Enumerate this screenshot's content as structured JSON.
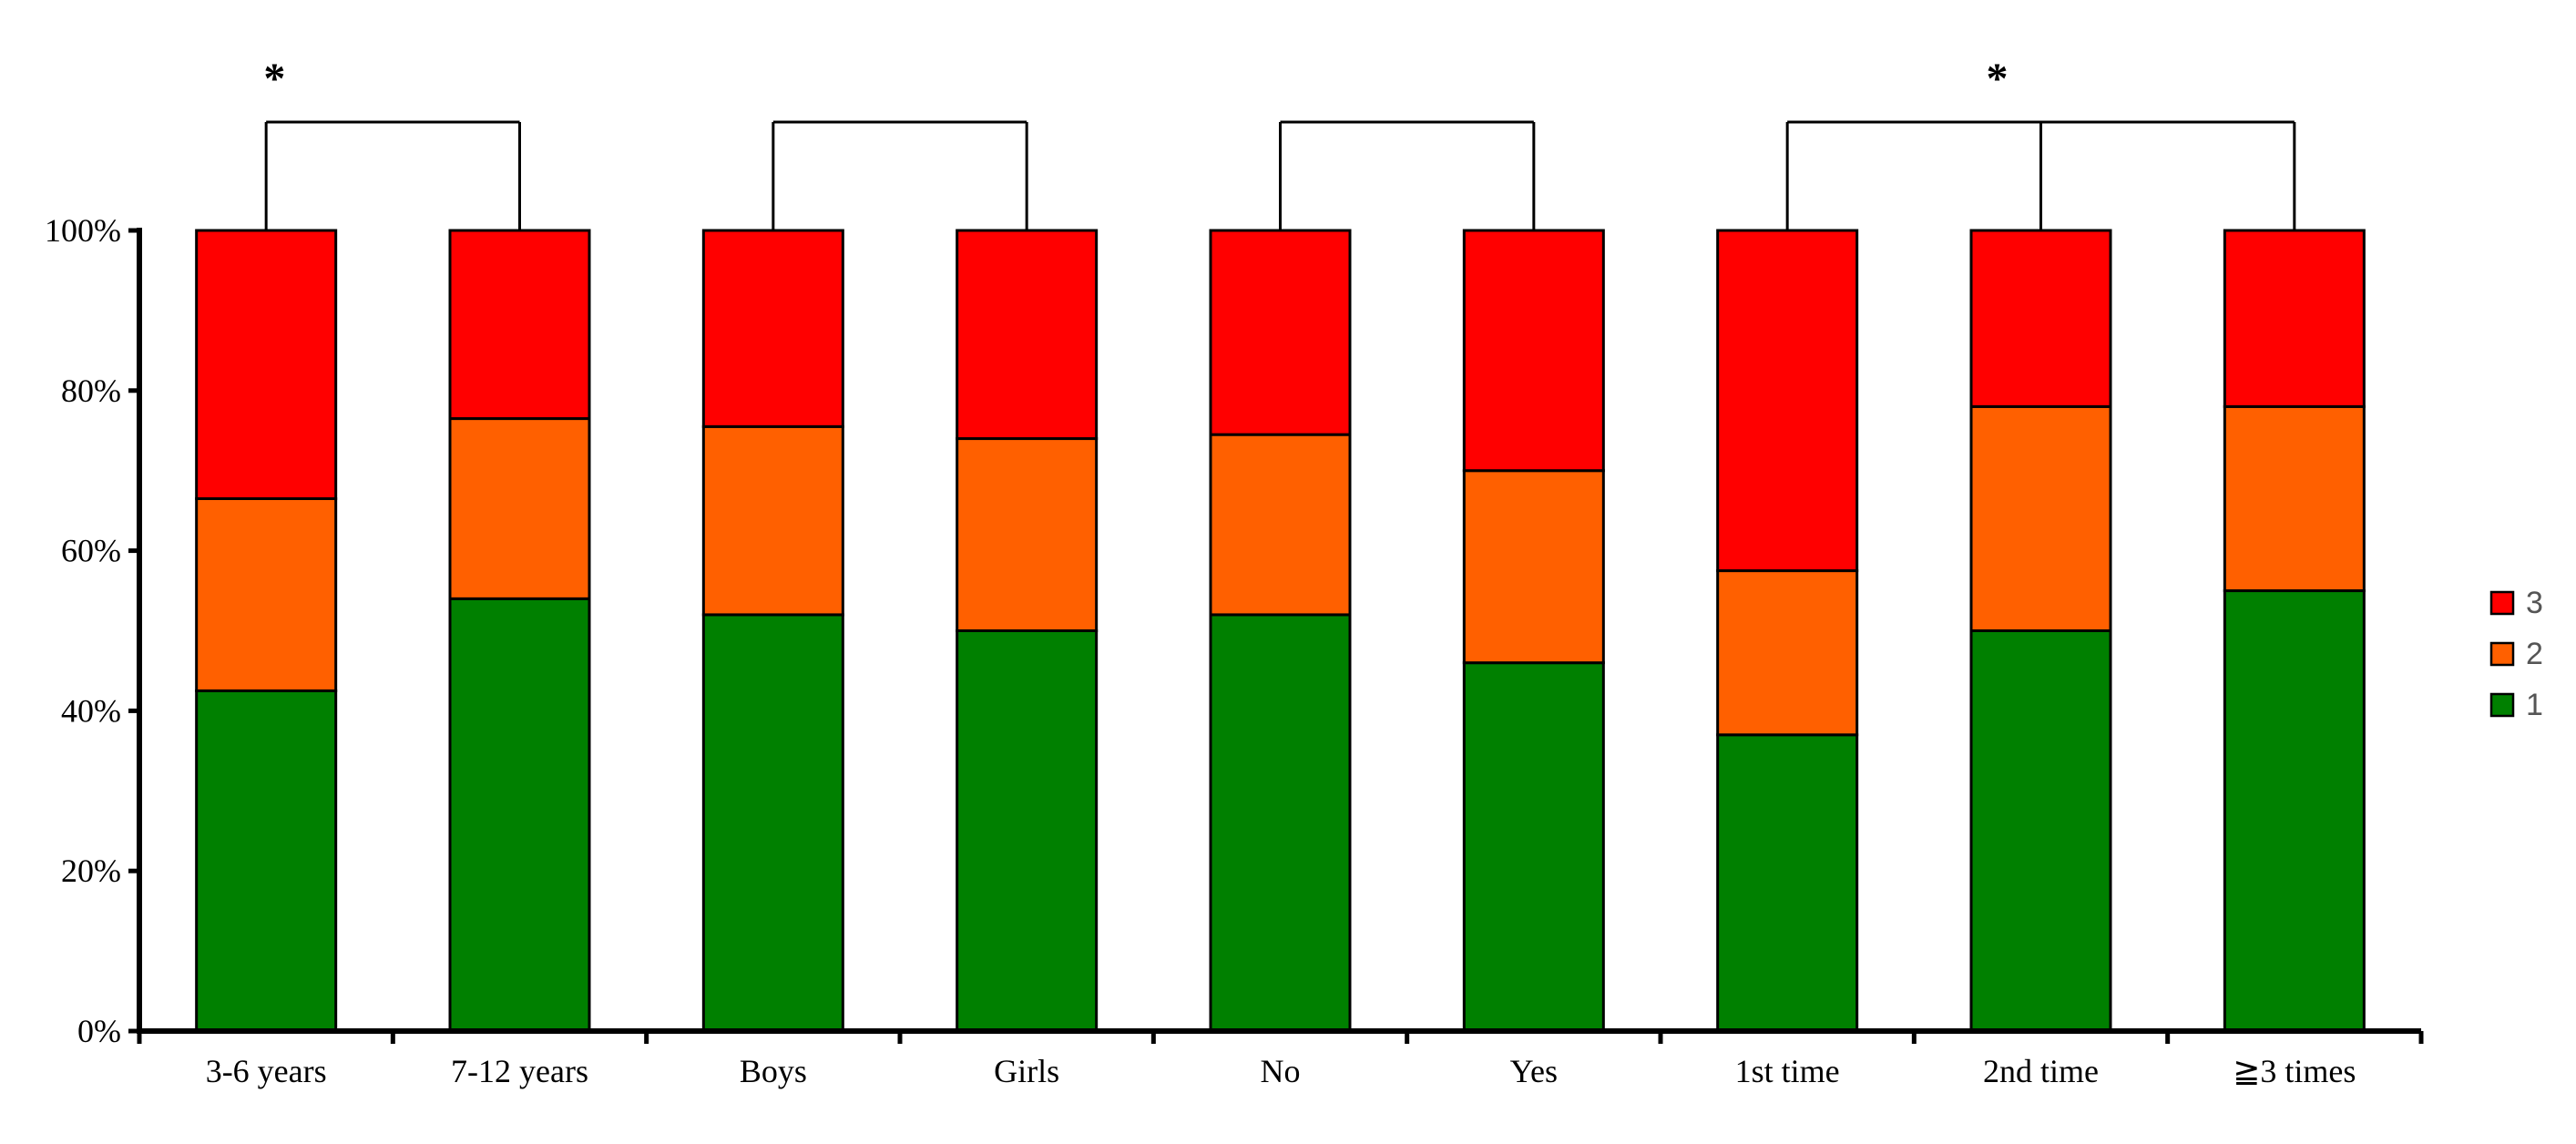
{
  "chart_data": {
    "type": "bar",
    "stacked": true,
    "categories": [
      "3-6 years",
      "7-12 years",
      "Boys",
      "Girls",
      "No",
      "Yes",
      "1st time",
      "2nd time",
      "≧3 times"
    ],
    "series": [
      {
        "name": "1",
        "color": "#008000",
        "values": [
          42.5,
          54.0,
          52.0,
          50.0,
          52.0,
          46.0,
          37.0,
          50.0,
          55.0
        ]
      },
      {
        "name": "2",
        "color": "#ff6000",
        "values": [
          24.0,
          22.5,
          23.5,
          24.0,
          22.5,
          24.0,
          20.5,
          28.0,
          23.0
        ]
      },
      {
        "name": "3",
        "color": "#ff0000",
        "values": [
          33.5,
          23.5,
          24.5,
          26.0,
          25.5,
          30.0,
          42.5,
          22.0,
          22.0
        ]
      }
    ],
    "y_ticks": [
      "0%",
      "20%",
      "40%",
      "60%",
      "80%",
      "100%"
    ],
    "y_tick_values": [
      0,
      20,
      40,
      60,
      80,
      100
    ],
    "ylim": [
      0,
      100
    ],
    "grid": false,
    "legend_position": "right",
    "legend_order": [
      "3",
      "2",
      "1"
    ],
    "significance": [
      {
        "groups": [
          0,
          1
        ],
        "label": "*"
      },
      {
        "groups": [
          2,
          3
        ],
        "label": ""
      },
      {
        "groups": [
          4,
          5
        ],
        "label": ""
      },
      {
        "groups": [
          6,
          7,
          8
        ],
        "label": "*"
      }
    ]
  }
}
